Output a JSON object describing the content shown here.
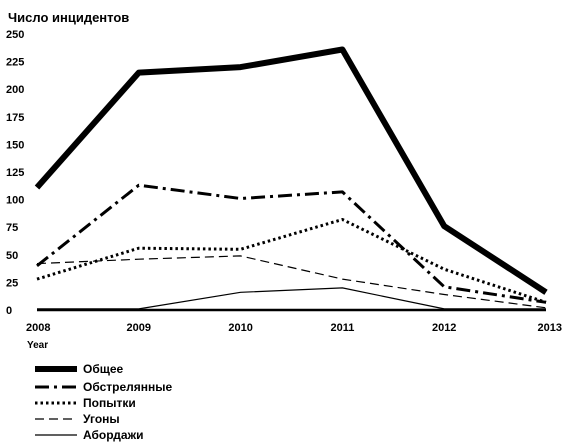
{
  "chart_data": {
    "type": "line",
    "ylabel": "Число инцидентов",
    "xlabel": "Year",
    "x": [
      2008,
      2009,
      2010,
      2011,
      2012,
      2013
    ],
    "x_tick_labels": [
      "2008",
      "2009",
      "2010",
      "2011",
      "2012",
      "2013"
    ],
    "ylim": [
      0,
      250
    ],
    "y_ticks": [
      0,
      25,
      50,
      75,
      100,
      125,
      150,
      175,
      200,
      225,
      250
    ],
    "y_tick_labels": [
      "0",
      "25",
      "50",
      "75",
      "100",
      "125",
      "150",
      "175",
      "200",
      "225",
      "250"
    ],
    "grid": false,
    "legend_position": "bottom-left",
    "series": [
      {
        "name": "Общее",
        "style": "solid-thick",
        "color": "#000000",
        "values": [
          111,
          215,
          220,
          236,
          76,
          16
        ]
      },
      {
        "name": "Обстрелянные",
        "style": "dash-dot",
        "color": "#000000",
        "values": [
          40,
          113,
          101,
          107,
          21,
          7
        ]
      },
      {
        "name": "Попытки",
        "style": "dotted",
        "color": "#000000",
        "values": [
          28,
          56,
          55,
          82,
          37,
          7
        ]
      },
      {
        "name": "Угоны",
        "style": "dashed",
        "color": "#000000",
        "values": [
          42,
          46,
          49,
          28,
          14,
          2
        ]
      },
      {
        "name": "Абордажи",
        "style": "solid-thin",
        "color": "#000000",
        "values": [
          1,
          1,
          16,
          20,
          1,
          1
        ]
      }
    ]
  }
}
